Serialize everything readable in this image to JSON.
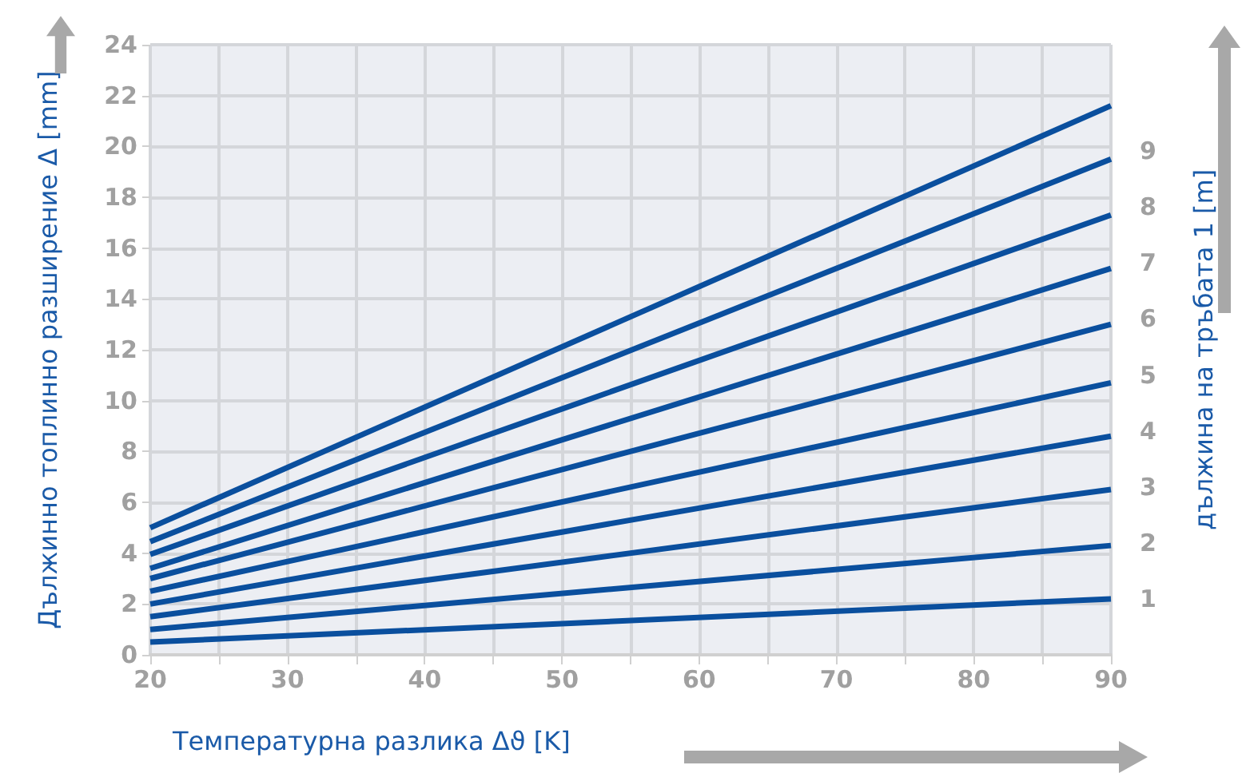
{
  "chart_data": {
    "type": "line",
    "xlabel": "Температурна разлика Δϑ [K]",
    "ylabel": "Дължинно топлинно разширение Δ [mm]",
    "y2label": "дължина на тръбата 1 [m]",
    "xlim": [
      20,
      90
    ],
    "xticks": [
      20,
      {
        "value": 25,
        "label": null
      },
      30,
      {
        "value": 35,
        "label": null
      },
      40,
      {
        "value": 45,
        "label": null
      },
      50,
      {
        "value": 55,
        "label": null
      },
      60,
      {
        "value": 65,
        "label": null
      },
      70,
      {
        "value": 75,
        "label": null
      },
      80,
      {
        "value": 85,
        "label": null
      },
      90
    ],
    "ylim": [
      0,
      24
    ],
    "yticks": [
      0,
      2,
      4,
      6,
      8,
      10,
      12,
      14,
      16,
      18,
      20,
      22,
      24
    ],
    "y2lim": [
      0,
      10.9
    ],
    "y2ticks": [
      1,
      2,
      3,
      4,
      5,
      6,
      7,
      8,
      9
    ],
    "grid": true,
    "marker": "none",
    "line_style": "solid",
    "x": [
      20,
      90
    ],
    "series": [
      {
        "color": "#0a4f9e",
        "values": [
          0.5,
          2.2
        ]
      },
      {
        "color": "#0a4f9e",
        "values": [
          1.0,
          4.3
        ]
      },
      {
        "color": "#0a4f9e",
        "values": [
          1.5,
          6.5
        ]
      },
      {
        "color": "#0a4f9e",
        "values": [
          2.0,
          8.6
        ]
      },
      {
        "color": "#0a4f9e",
        "values": [
          2.5,
          10.7
        ]
      },
      {
        "color": "#0a4f9e",
        "values": [
          3.0,
          13.0
        ]
      },
      {
        "color": "#0a4f9e",
        "values": [
          3.4,
          15.2
        ]
      },
      {
        "color": "#0a4f9e",
        "values": [
          3.95,
          17.3
        ]
      },
      {
        "color": "#0a4f9e",
        "values": [
          4.45,
          19.5
        ]
      },
      {
        "color": "#0a4f9e",
        "values": [
          5.0,
          21.6
        ]
      }
    ]
  }
}
